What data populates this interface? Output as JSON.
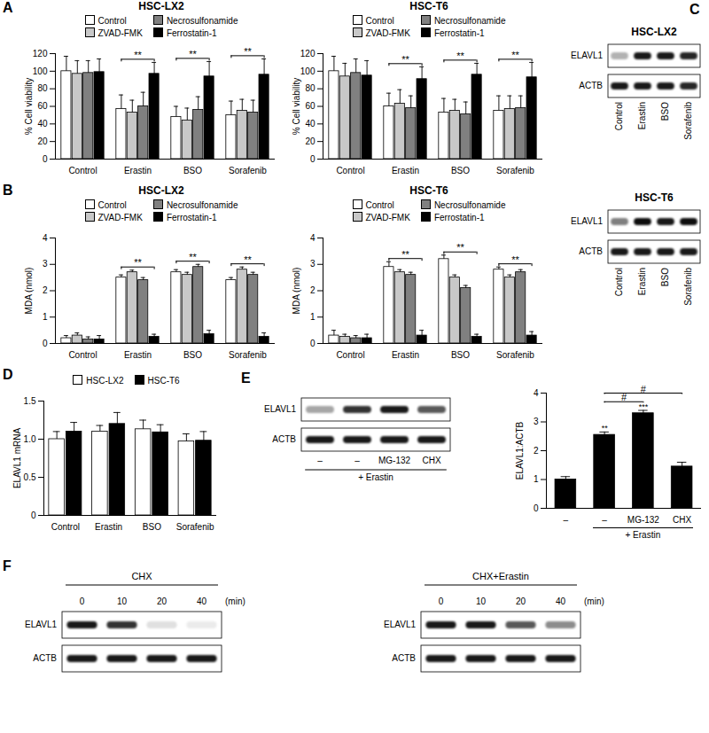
{
  "chart_data": [
    {
      "panel": "A",
      "type": "bar",
      "title": "HSC-LX2",
      "y_label": "% Cell viability",
      "categories": [
        "Control",
        "Erastin",
        "BSO",
        "Sorafenib"
      ],
      "series": [
        {
          "name": "Control",
          "color": "#ffffff",
          "values": [
            100,
            57,
            48,
            50
          ],
          "errors": [
            17,
            16,
            12,
            16
          ]
        },
        {
          "name": "ZVAD-FMK",
          "color": "#c8c8c8",
          "values": [
            97,
            53,
            44,
            55
          ],
          "errors": [
            15,
            14,
            14,
            13
          ]
        },
        {
          "name": "Necrosulfonamide",
          "color": "#808080",
          "values": [
            98,
            60,
            56,
            53
          ],
          "errors": [
            14,
            16,
            15,
            14
          ]
        },
        {
          "name": "Ferrostatin-1",
          "color": "#000000",
          "values": [
            99,
            97,
            94,
            96
          ],
          "errors": [
            15,
            13,
            17,
            18
          ]
        }
      ],
      "ylim": [
        0,
        120
      ],
      "yticks": [
        0,
        20,
        40,
        60,
        80,
        100,
        120
      ],
      "legend": "top",
      "annotations": [
        {
          "text": "**",
          "category": "Erastin",
          "from": "Control",
          "to": "Ferrostatin-1"
        },
        {
          "text": "**",
          "category": "BSO",
          "from": "Control",
          "to": "Ferrostatin-1"
        },
        {
          "text": "**",
          "category": "Sorafenib",
          "from": "Control",
          "to": "Ferrostatin-1"
        }
      ]
    },
    {
      "type": "bar",
      "title": "HSC-T6",
      "y_label": "% Cell viability",
      "categories": [
        "Control",
        "Erastin",
        "BSO",
        "Sorafenib"
      ],
      "series": [
        {
          "name": "Control",
          "color": "#ffffff",
          "values": [
            100,
            60,
            53,
            55
          ],
          "errors": [
            17,
            15,
            16,
            17
          ]
        },
        {
          "name": "ZVAD-FMK",
          "color": "#c8c8c8",
          "values": [
            94,
            63,
            55,
            57
          ],
          "errors": [
            15,
            16,
            13,
            15
          ]
        },
        {
          "name": "Necrosulfonamide",
          "color": "#808080",
          "values": [
            98,
            58,
            51,
            58
          ],
          "errors": [
            16,
            14,
            14,
            14
          ]
        },
        {
          "name": "Ferrostatin-1",
          "color": "#000000",
          "values": [
            95,
            91,
            96,
            93
          ],
          "errors": [
            17,
            14,
            13,
            17
          ]
        }
      ],
      "ylim": [
        0,
        120
      ],
      "yticks": [
        0,
        20,
        40,
        60,
        80,
        100,
        120
      ],
      "legend": "top",
      "annotations": [
        {
          "text": "**",
          "category": "Erastin",
          "from": "Control",
          "to": "Ferrostatin-1"
        },
        {
          "text": "**",
          "category": "BSO",
          "from": "Control",
          "to": "Ferrostatin-1"
        },
        {
          "text": "**",
          "category": "Sorafenib",
          "from": "Control",
          "to": "Ferrostatin-1"
        }
      ]
    },
    {
      "panel": "B",
      "type": "bar",
      "title": "HSC-LX2",
      "y_label": "MDA (nmol)",
      "categories": [
        "Control",
        "Erastin",
        "BSO",
        "Sorafenib"
      ],
      "series": [
        {
          "name": "Control",
          "color": "#ffffff",
          "values": [
            0.2,
            2.5,
            2.7,
            2.4
          ],
          "errors": [
            0.1,
            0.1,
            0.1,
            0.1
          ]
        },
        {
          "name": "ZVAD-FMK",
          "color": "#c8c8c8",
          "values": [
            0.3,
            2.7,
            2.6,
            2.8
          ],
          "errors": [
            0.1,
            0.08,
            0.1,
            0.1
          ]
        },
        {
          "name": "Necrosulfonamide",
          "color": "#808080",
          "values": [
            0.15,
            2.4,
            2.9,
            2.6
          ],
          "errors": [
            0.1,
            0.1,
            0.1,
            0.1
          ]
        },
        {
          "name": "Ferrostatin-1",
          "color": "#000000",
          "values": [
            0.15,
            0.25,
            0.35,
            0.25
          ],
          "errors": [
            0.15,
            0.1,
            0.15,
            0.15
          ]
        }
      ],
      "ylim": [
        0,
        4
      ],
      "yticks": [
        0,
        1,
        2,
        3,
        4
      ],
      "legend": "top",
      "annotations": [
        {
          "text": "**",
          "category": "Erastin",
          "from": "Control",
          "to": "Ferrostatin-1"
        },
        {
          "text": "**",
          "category": "BSO",
          "from": "Control",
          "to": "Ferrostatin-1"
        },
        {
          "text": "**",
          "category": "Sorafenib",
          "from": "Control",
          "to": "Ferrostatin-1"
        }
      ]
    },
    {
      "type": "bar",
      "title": "HSC-T6",
      "y_label": "MDA (nmol)",
      "categories": [
        "Control",
        "Erastin",
        "BSO",
        "Sorafenib"
      ],
      "series": [
        {
          "name": "Control",
          "color": "#ffffff",
          "values": [
            0.3,
            2.9,
            3.2,
            2.8
          ],
          "errors": [
            0.2,
            0.2,
            0.15,
            0.1
          ]
        },
        {
          "name": "ZVAD-FMK",
          "color": "#c8c8c8",
          "values": [
            0.25,
            2.7,
            2.5,
            2.5
          ],
          "errors": [
            0.1,
            0.1,
            0.1,
            0.1
          ]
        },
        {
          "name": "Necrosulfonamide",
          "color": "#808080",
          "values": [
            0.2,
            2.6,
            2.1,
            2.7
          ],
          "errors": [
            0.1,
            0.1,
            0.1,
            0.1
          ]
        },
        {
          "name": "Ferrostatin-1",
          "color": "#000000",
          "values": [
            0.2,
            0.3,
            0.25,
            0.3
          ],
          "errors": [
            0.15,
            0.2,
            0.1,
            0.15
          ]
        }
      ],
      "ylim": [
        0,
        4
      ],
      "yticks": [
        0,
        1,
        2,
        3,
        4
      ],
      "legend": "top",
      "annotations": [
        {
          "text": "**",
          "category": "Erastin",
          "from": "Control",
          "to": "Ferrostatin-1"
        },
        {
          "text": "**",
          "category": "BSO",
          "from": "Control",
          "to": "Ferrostatin-1"
        },
        {
          "text": "**",
          "category": "Sorafenib",
          "from": "Control",
          "to": "Ferrostatin-1"
        }
      ]
    },
    {
      "panel": "D",
      "type": "bar",
      "y_label": "ELAVL1 mRNA",
      "categories": [
        "Control",
        "Erastin",
        "BSO",
        "Sorafenib"
      ],
      "series": [
        {
          "name": "HSC-LX2",
          "color": "#ffffff",
          "values": [
            1.0,
            1.1,
            1.13,
            0.97
          ],
          "errors": [
            0.1,
            0.08,
            0.12,
            0.1
          ]
        },
        {
          "name": "HSC-T6",
          "color": "#000000",
          "values": [
            1.1,
            1.2,
            1.09,
            0.98
          ],
          "errors": [
            0.12,
            0.15,
            0.1,
            0.12
          ]
        }
      ],
      "ylim": [
        0,
        1.5
      ],
      "yticks": [
        0,
        0.5,
        {
          "value": 1,
          "label": "1.0"
        },
        1.5
      ],
      "legend": "top"
    },
    {
      "panel": "E",
      "type": "bar",
      "y_label": "ELAVL1:ACTB",
      "categories": [
        "–",
        "–",
        "MG-132",
        "CHX"
      ],
      "values": [
        1.0,
        2.55,
        3.3,
        1.45
      ],
      "errors": [
        0.1,
        0.1,
        0.1,
        0.15
      ],
      "color": "#000000",
      "ylim": [
        0,
        4
      ],
      "yticks": [
        0,
        1,
        2,
        3,
        4
      ],
      "group_label": {
        "text": "+ Erastin",
        "from": 1,
        "to": 3
      },
      "annotations": [
        {
          "text": "**",
          "at": 1
        },
        {
          "text": "***",
          "at": 2
        },
        {
          "text": "#",
          "from": 1,
          "to": 2
        },
        {
          "text": "#",
          "from": 1,
          "to": 3
        }
      ]
    }
  ],
  "blots": [
    {
      "panel": "C",
      "title": "HSC-LX2",
      "lanes": [
        "Control",
        "Erastin",
        "BSO",
        "Sorafenib"
      ],
      "rows": [
        {
          "label": "ELAVL1",
          "intensity": [
            0.3,
            0.9,
            0.9,
            0.85
          ]
        },
        {
          "label": "ACTB",
          "intensity": [
            0.9,
            0.9,
            0.9,
            0.85
          ]
        }
      ]
    },
    {
      "title": "HSC-T6",
      "lanes": [
        "Control",
        "Erastin",
        "BSO",
        "Sorafenib"
      ],
      "rows": [
        {
          "label": "ELAVL1",
          "intensity": [
            0.5,
            0.95,
            0.9,
            0.95
          ]
        },
        {
          "label": "ACTB",
          "intensity": [
            0.9,
            0.9,
            0.9,
            0.9
          ]
        }
      ]
    },
    {
      "lanes": [
        "–",
        "–",
        "MG-132",
        "CHX"
      ],
      "group_label": {
        "text": "+ Erastin",
        "from": 0,
        "to": 3
      },
      "rows": [
        {
          "label": "ELAVL1",
          "intensity": [
            0.35,
            0.8,
            0.9,
            0.65
          ]
        },
        {
          "label": "ACTB",
          "intensity": [
            0.9,
            0.9,
            0.9,
            0.9
          ]
        }
      ]
    },
    {
      "panel": "F",
      "title": "CHX",
      "lanes": [
        "0",
        "10",
        "20",
        "40"
      ],
      "unit": "(min)",
      "rows": [
        {
          "label": "ELAVL1",
          "intensity": [
            0.9,
            0.8,
            0.12,
            0.08
          ]
        },
        {
          "label": "ACTB",
          "intensity": [
            0.9,
            0.9,
            0.9,
            0.9
          ]
        }
      ]
    },
    {
      "title": "CHX+Erastin",
      "lanes": [
        "0",
        "10",
        "20",
        "40"
      ],
      "unit": "(min)",
      "rows": [
        {
          "label": "ELAVL1",
          "intensity": [
            0.9,
            0.9,
            0.65,
            0.45
          ]
        },
        {
          "label": "ACTB",
          "intensity": [
            0.9,
            0.9,
            0.9,
            0.9
          ]
        }
      ]
    }
  ]
}
